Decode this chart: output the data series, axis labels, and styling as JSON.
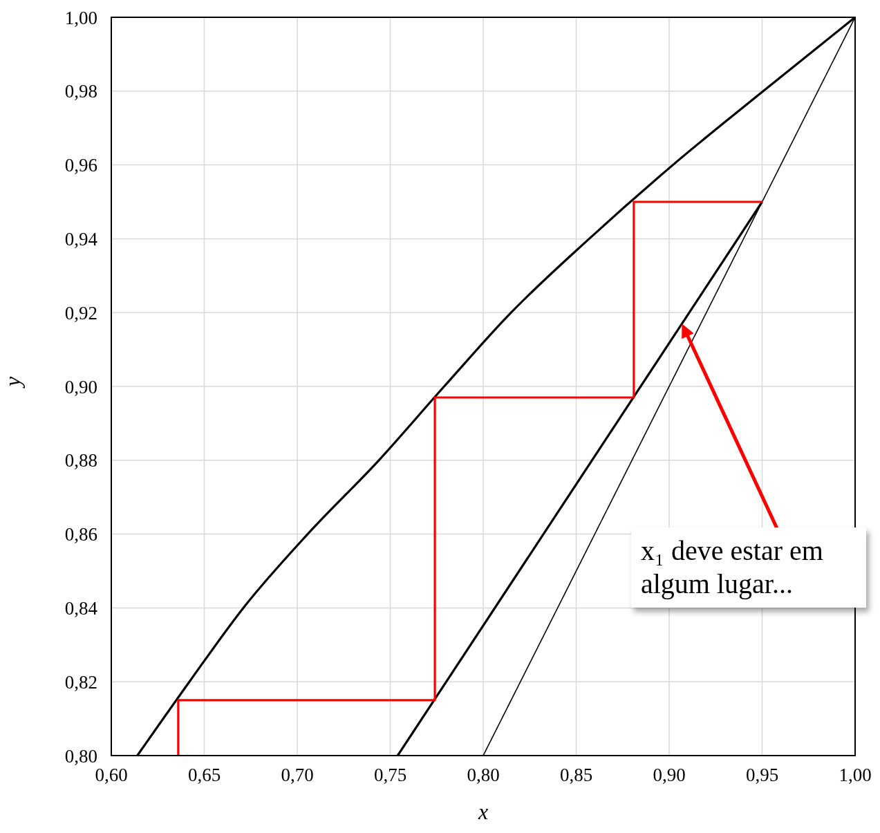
{
  "chart_data": {
    "type": "line",
    "xlabel": "x",
    "ylabel": "y",
    "series": [
      {
        "color": "#000000",
        "x": [
          0.614,
          0.642,
          0.671,
          0.7056,
          0.7439,
          0.779,
          0.815,
          0.857,
          0.902,
          0.9506,
          1.0
        ],
        "values": [
          0.8,
          0.82,
          0.84,
          0.86,
          0.88,
          0.9,
          0.92,
          0.94,
          0.96,
          0.98,
          1.0
        ]
      },
      {
        "color": "#000000",
        "x": [
          0.754,
          0.95
        ],
        "values": [
          0.8,
          0.95
        ]
      },
      {
        "color": "#000000",
        "x": [
          0.8,
          1.0
        ],
        "values": [
          0.8,
          1.0
        ]
      },
      {
        "color": "#ff0000",
        "x": [
          0.95,
          0.881,
          0.881,
          0.774,
          0.774,
          0.636,
          0.636
        ],
        "values": [
          0.95,
          0.95,
          0.897,
          0.897,
          0.815,
          0.815,
          0.8
        ]
      }
    ],
    "xlim": [
      0.6,
      1.0
    ],
    "ylim": [
      0.8,
      1.0
    ],
    "xticks": [
      {
        "value": 0.6,
        "label": "0,60"
      },
      {
        "value": 0.65,
        "label": "0,65"
      },
      {
        "value": 0.7,
        "label": "0,70"
      },
      {
        "value": 0.75,
        "label": "0,75"
      },
      {
        "value": 0.8,
        "label": "0,80"
      },
      {
        "value": 0.85,
        "label": "0,85"
      },
      {
        "value": 0.9,
        "label": "0,90"
      },
      {
        "value": 0.95,
        "label": "0,95"
      },
      {
        "value": 1.0,
        "label": "1,00"
      }
    ],
    "yticks": [
      {
        "value": 0.8,
        "label": "0,80"
      },
      {
        "value": 0.82,
        "label": "0,82"
      },
      {
        "value": 0.84,
        "label": "0,84"
      },
      {
        "value": 0.86,
        "label": "0,86"
      },
      {
        "value": 0.88,
        "label": "0,88"
      },
      {
        "value": 0.9,
        "label": "0,90"
      },
      {
        "value": 0.92,
        "label": "0,92"
      },
      {
        "value": 0.94,
        "label": "0,94"
      },
      {
        "value": 0.96,
        "label": "0,96"
      },
      {
        "value": 0.98,
        "label": "0,98"
      },
      {
        "value": 1.0,
        "label": "1,00"
      }
    ],
    "annotations": [
      "x₁ deve estar em algum lugar..."
    ],
    "grid": true,
    "marker": "none",
    "line_style": "solid"
  }
}
